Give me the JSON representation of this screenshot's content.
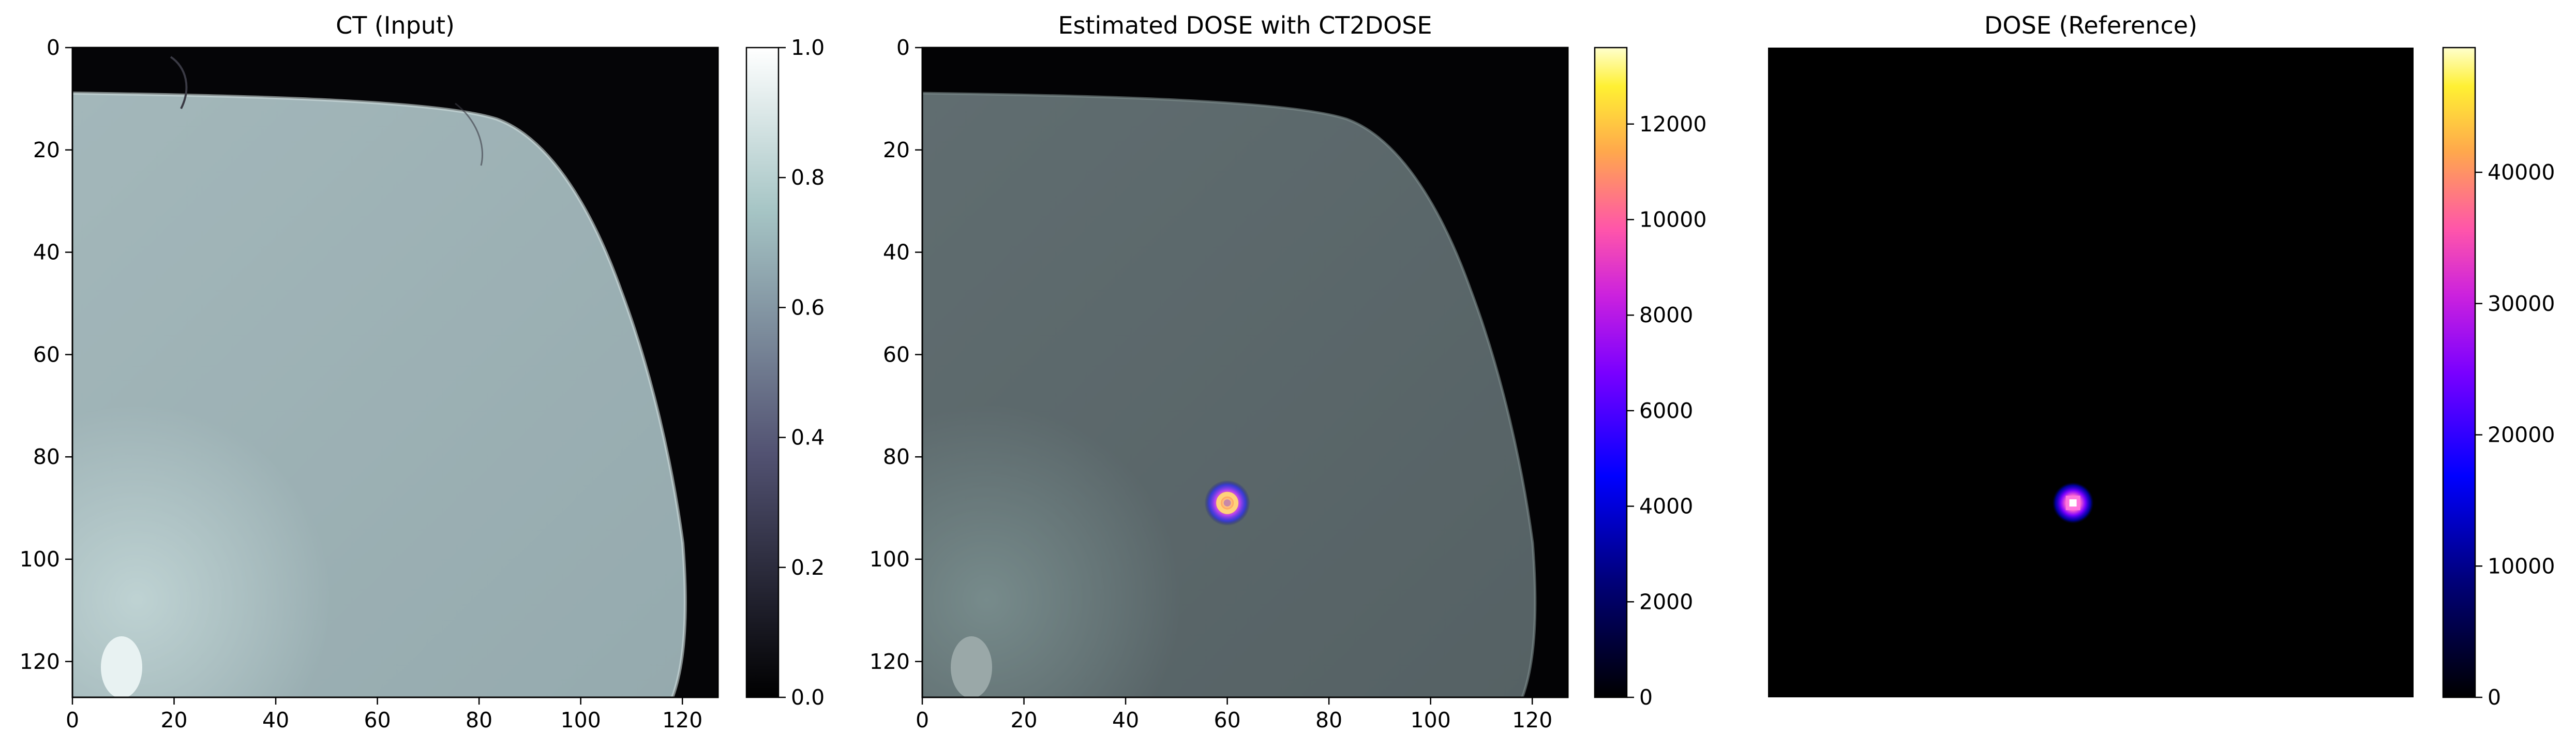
{
  "chart_data": [
    {
      "type": "heatmap",
      "title": "CT (Input)",
      "colormap": "bone",
      "x_ticks": [
        "0",
        "20",
        "40",
        "60",
        "80",
        "100",
        "120"
      ],
      "y_ticks": [
        "0",
        "20",
        "40",
        "60",
        "80",
        "100",
        "120"
      ],
      "xlim": [
        0,
        127
      ],
      "ylim": [
        127,
        0
      ],
      "show_axes": true,
      "colorbar": {
        "range": [
          0.0,
          1.0
        ],
        "ticks": [
          "0.0",
          "0.2",
          "0.4",
          "0.6",
          "0.8",
          "1.0"
        ],
        "tick_values": [
          0.0,
          0.2,
          0.4,
          0.6,
          0.8,
          1.0
        ]
      }
    },
    {
      "type": "heatmap",
      "title": "Estimated DOSE with CT2DOSE",
      "colormap": "gnuplot2",
      "overlay": "CT (bone colormap, dimmed)",
      "dose_hotspot": [
        60,
        89
      ],
      "x_ticks": [
        "0",
        "20",
        "40",
        "60",
        "80",
        "100",
        "120"
      ],
      "y_ticks": [
        "0",
        "20",
        "40",
        "60",
        "80",
        "100",
        "120"
      ],
      "xlim": [
        0,
        127
      ],
      "ylim": [
        127,
        0
      ],
      "show_axes": true,
      "colorbar": {
        "range": [
          0,
          13600
        ],
        "ticks": [
          "0",
          "2000",
          "4000",
          "6000",
          "8000",
          "10000",
          "12000"
        ],
        "tick_values": [
          0,
          2000,
          4000,
          6000,
          8000,
          10000,
          12000
        ]
      }
    },
    {
      "type": "heatmap",
      "title": "DOSE (Reference)",
      "colormap": "gnuplot2",
      "dose_hotspot": [
        60,
        89
      ],
      "xlim": [
        0,
        127
      ],
      "ylim": [
        127,
        0
      ],
      "show_axes": false,
      "colorbar": {
        "range": [
          0,
          49500
        ],
        "ticks": [
          "0",
          "10000",
          "20000",
          "30000",
          "40000"
        ],
        "tick_values": [
          0,
          10000,
          20000,
          30000,
          40000
        ]
      }
    }
  ]
}
